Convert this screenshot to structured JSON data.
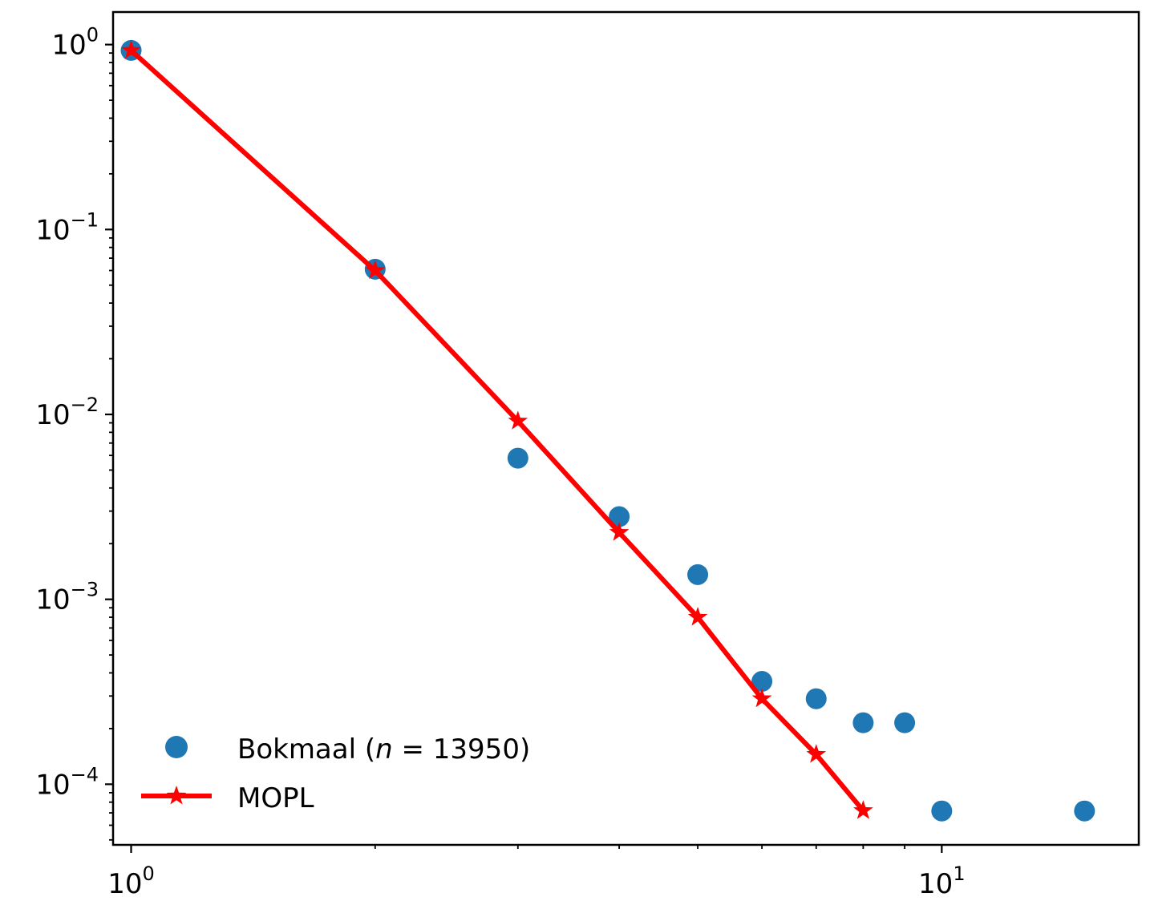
{
  "chart_data": {
    "type": "scatter",
    "xscale": "log",
    "yscale": "log",
    "xlim": [
      0.95,
      17.5
    ],
    "ylim": [
      4.7e-05,
      1.5
    ],
    "grid": false,
    "legend_position": "lower-left",
    "x_ticks": [
      {
        "value": 1,
        "base": "10",
        "exp": "0"
      },
      {
        "value": 10,
        "base": "10",
        "exp": "1"
      }
    ],
    "y_ticks": [
      {
        "value": 1,
        "base": "10",
        "exp": "0"
      },
      {
        "value": 0.1,
        "base": "10",
        "exp": "−1"
      },
      {
        "value": 0.01,
        "base": "10",
        "exp": "−2"
      },
      {
        "value": 0.001,
        "base": "10",
        "exp": "−3"
      },
      {
        "value": 0.0001,
        "base": "10",
        "exp": "−4"
      }
    ],
    "series": [
      {
        "name": "Bokmaal (n = 13950)",
        "legend_prefix": "Bokmaal (",
        "legend_var": "n",
        "legend_suffix": " = 13950)",
        "style": "markers",
        "marker": "circle",
        "color": "#1f77b4",
        "points": [
          {
            "x": 1,
            "y": 0.93
          },
          {
            "x": 2,
            "y": 0.061
          },
          {
            "x": 3,
            "y": 0.0058
          },
          {
            "x": 4,
            "y": 0.0028
          },
          {
            "x": 5,
            "y": 0.00136
          },
          {
            "x": 6,
            "y": 0.00036
          },
          {
            "x": 7,
            "y": 0.00029
          },
          {
            "x": 8,
            "y": 0.000215
          },
          {
            "x": 9,
            "y": 0.000215
          },
          {
            "x": 10,
            "y": 7.17e-05
          },
          {
            "x": 15,
            "y": 7.17e-05
          }
        ]
      },
      {
        "name": "MOPL",
        "style": "line-markers",
        "marker": "star",
        "color": "#ff0000",
        "points": [
          {
            "x": 1,
            "y": 0.93
          },
          {
            "x": 2,
            "y": 0.06
          },
          {
            "x": 3,
            "y": 0.0092
          },
          {
            "x": 4,
            "y": 0.0023
          },
          {
            "x": 5,
            "y": 0.0008
          },
          {
            "x": 6,
            "y": 0.00029
          },
          {
            "x": 7,
            "y": 0.000145
          },
          {
            "x": 8,
            "y": 7.2e-05
          }
        ]
      }
    ]
  }
}
